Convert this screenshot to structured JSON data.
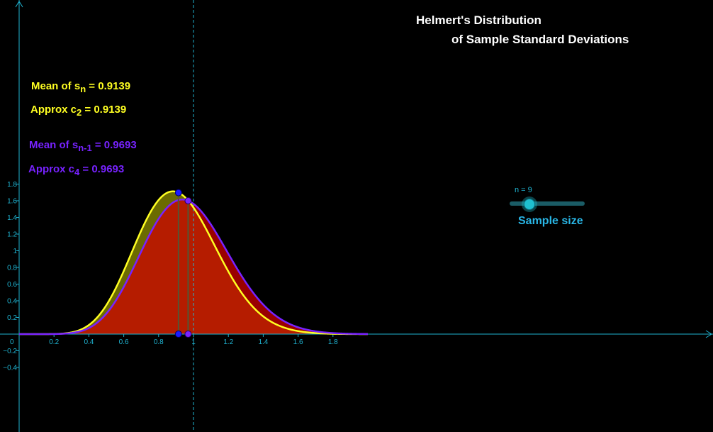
{
  "title_line1": "Helmert's Distribution",
  "title_line2": "of Sample Standard Deviations",
  "stats": {
    "sn_prefix": "Mean of s",
    "sn_sub": "n",
    "sn_value": " = 0.9139",
    "c2_prefix": "Approx c",
    "c2_sub": "2",
    "c2_value": " = 0.9139",
    "sn1_prefix": "Mean of s",
    "sn1_sub": "n-1",
    "sn1_value": " = 0.9693",
    "c4_prefix": "Approx c",
    "c4_sub": "4",
    "c4_value": " = 0.9693"
  },
  "slider": {
    "label": "n = 9",
    "caption": "Sample size",
    "min": 2,
    "max": 30,
    "value": 9
  },
  "colors": {
    "background": "#000000",
    "axis": "#1fb3d1",
    "yellow_curve": "#ffff22",
    "purple_curve": "#7722ff",
    "yellow_fill": "#6b6b00",
    "red_fill": "#b51c00",
    "dark_red_fill": "#9a0000",
    "mean_line": "#555533",
    "dashed_line": "#1fb3d1",
    "point_blue": "#1a1aff",
    "point_purple": "#7a22ff"
  },
  "chart_data": {
    "type": "line",
    "n": 9,
    "xlim": [
      0,
      2
    ],
    "ylim": [
      -0.5,
      1.9
    ],
    "x_ticks": [
      "0.2",
      "0.4",
      "0.6",
      "0.8",
      "1",
      "1.2",
      "1.4",
      "1.6",
      "1.8"
    ],
    "x_tick_values": [
      0.2,
      0.4,
      0.6,
      0.8,
      1,
      1.2,
      1.4,
      1.6,
      1.8
    ],
    "y_ticks": [
      "−0.4",
      "−0.2",
      "0.2",
      "0.4",
      "0.6",
      "0.8",
      "1",
      "1.2",
      "1.4",
      "1.6",
      "1.8"
    ],
    "y_tick_values": [
      -0.4,
      -0.2,
      0.2,
      0.4,
      0.6,
      0.8,
      1,
      1.2,
      1.4,
      1.6,
      1.8
    ],
    "origin_label": "0",
    "series": [
      {
        "key": "s_n",
        "color": "#ffff22",
        "mean": 0.9139
      },
      {
        "key": "s_n_minus_1",
        "color": "#7722ff",
        "mean": 0.9693
      }
    ],
    "reference_x": 1
  }
}
